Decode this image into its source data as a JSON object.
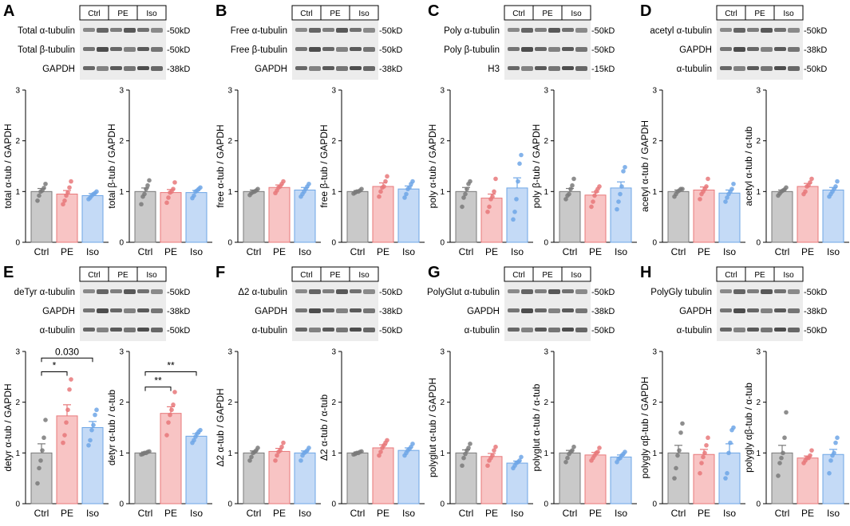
{
  "figure": {
    "colors": {
      "ctrl_fill": "#c9c9c9",
      "ctrl_edge": "#7a7a7a",
      "pe_fill": "#f8c4c4",
      "pe_edge": "#e8787a",
      "iso_fill": "#c4daf6",
      "iso_edge": "#6ea6e6"
    },
    "groups": [
      "Ctrl",
      "PE",
      "Iso"
    ],
    "axis_ticks": [
      "0",
      "1",
      "2",
      "3"
    ],
    "panels": [
      {
        "letter": "A",
        "blot": {
          "rows": [
            {
              "label": "Total α-tubulin",
              "kd": "-50kD"
            },
            {
              "label": "Total β-tubulin",
              "kd": "-50kD"
            },
            {
              "label": "GAPDH",
              "kd": "-38kD"
            }
          ]
        },
        "charts": [
          {
            "ylabel": "total α-tub / GAPDH",
            "means": [
              1.0,
              0.95,
              0.92
            ],
            "sems": [
              0.06,
              0.07,
              0.04
            ],
            "points": [
              [
                0.82,
                0.92,
                1.0,
                1.02,
                1.07,
                1.15
              ],
              [
                0.75,
                0.82,
                0.92,
                0.98,
                1.08,
                1.2
              ],
              [
                0.85,
                0.88,
                0.92,
                0.95,
                0.97,
                1.0
              ]
            ],
            "annotations": []
          },
          {
            "ylabel": "total β-tub / GAPDH",
            "means": [
              1.0,
              0.98,
              0.98
            ],
            "sems": [
              0.07,
              0.06,
              0.04
            ],
            "points": [
              [
                0.75,
                0.9,
                0.95,
                1.05,
                1.12,
                1.22
              ],
              [
                0.78,
                0.88,
                0.98,
                1.0,
                1.05,
                1.18
              ],
              [
                0.87,
                0.92,
                1.0,
                1.02,
                1.05,
                1.08
              ]
            ],
            "annotations": []
          }
        ]
      },
      {
        "letter": "B",
        "blot": {
          "rows": [
            {
              "label": "Free α-tubulin",
              "kd": "-50kD"
            },
            {
              "label": "Free β-tubulin",
              "kd": "-50kD"
            },
            {
              "label": "GAPDH",
              "kd": "-38kD"
            }
          ]
        },
        "charts": [
          {
            "ylabel": "free α-tub / GAPDH",
            "means": [
              1.0,
              1.08,
              1.03
            ],
            "sems": [
              0.03,
              0.05,
              0.05
            ],
            "points": [
              [
                0.93,
                0.97,
                0.99,
                1.0,
                1.02,
                1.05
              ],
              [
                0.97,
                1.02,
                1.08,
                1.1,
                1.15,
                1.2
              ],
              [
                0.9,
                0.95,
                1.0,
                1.05,
                1.1,
                1.15
              ]
            ],
            "annotations": []
          },
          {
            "ylabel": "free β-tub / GAPDH",
            "means": [
              1.0,
              1.1,
              1.05
            ],
            "sems": [
              0.02,
              0.07,
              0.06
            ],
            "points": [
              [
                0.96,
                0.98,
                1.0,
                1.0,
                1.02,
                1.05
              ],
              [
                0.9,
                1.0,
                1.08,
                1.1,
                1.2,
                1.3
              ],
              [
                0.88,
                0.95,
                1.05,
                1.08,
                1.15,
                1.2
              ]
            ],
            "annotations": []
          }
        ]
      },
      {
        "letter": "C",
        "blot": {
          "rows": [
            {
              "label": "Poly α-tubulin",
              "kd": "-50kD"
            },
            {
              "label": "Poly β-tubulin",
              "kd": "-50kD"
            },
            {
              "label": "H3",
              "kd": "-15kD"
            }
          ]
        },
        "charts": [
          {
            "ylabel": "poly α-tub / GAPDH",
            "means": [
              1.0,
              0.87,
              1.07
            ],
            "sems": [
              0.08,
              0.08,
              0.2
            ],
            "points": [
              [
                0.7,
                0.88,
                0.95,
                1.05,
                1.15,
                1.2
              ],
              [
                0.6,
                0.7,
                0.85,
                0.9,
                1.0,
                1.25
              ],
              [
                0.45,
                0.6,
                0.85,
                1.2,
                1.55,
                1.72
              ]
            ],
            "annotations": []
          },
          {
            "ylabel": "poly β-tub / GAPDH",
            "means": [
              1.0,
              0.93,
              1.07
            ],
            "sems": [
              0.06,
              0.06,
              0.12
            ],
            "points": [
              [
                0.85,
                0.92,
                0.95,
                1.05,
                1.12,
                1.25
              ],
              [
                0.7,
                0.8,
                0.92,
                1.0,
                1.05,
                1.1
              ],
              [
                0.65,
                0.8,
                0.95,
                1.1,
                1.4,
                1.48
              ]
            ],
            "annotations": []
          }
        ]
      },
      {
        "letter": "D",
        "blot": {
          "rows": [
            {
              "label": "acetyl α-tubulin",
              "kd": "-50kD"
            },
            {
              "label": "GAPDH",
              "kd": "-38kD"
            },
            {
              "label": "α-tubulin",
              "kd": "-50kD"
            }
          ]
        },
        "charts": [
          {
            "ylabel": "acetyl α-tub / GAPDH",
            "means": [
              1.0,
              1.03,
              0.97
            ],
            "sems": [
              0.03,
              0.06,
              0.06
            ],
            "points": [
              [
                0.9,
                0.95,
                1.0,
                1.02,
                1.05,
                1.05
              ],
              [
                0.85,
                0.95,
                1.0,
                1.05,
                1.1,
                1.25
              ],
              [
                0.8,
                0.88,
                0.95,
                1.0,
                1.05,
                1.15
              ]
            ],
            "annotations": []
          },
          {
            "ylabel": "acetyl α-tub / α-tub",
            "means": [
              1.0,
              1.1,
              1.03
            ],
            "sems": [
              0.03,
              0.06,
              0.05
            ],
            "points": [
              [
                0.92,
                0.96,
                1.0,
                1.02,
                1.04,
                1.08
              ],
              [
                0.95,
                1.0,
                1.1,
                1.12,
                1.18,
                1.25
              ],
              [
                0.9,
                0.95,
                1.0,
                1.05,
                1.1,
                1.2
              ]
            ],
            "annotations": []
          }
        ]
      },
      {
        "letter": "E",
        "blot": {
          "rows": [
            {
              "label": "deTyr α-tubulin",
              "kd": "-50kD"
            },
            {
              "label": "GAPDH",
              "kd": "-38kD"
            },
            {
              "label": "α-tubulin",
              "kd": "-50kD"
            }
          ]
        },
        "charts": [
          {
            "ylabel": "detyr α-tub / GAPDH",
            "means": [
              1.0,
              1.73,
              1.5
            ],
            "sems": [
              0.18,
              0.22,
              0.12
            ],
            "points": [
              [
                0.4,
                0.7,
                0.85,
                1.05,
                1.3,
                1.65
              ],
              [
                1.2,
                1.35,
                1.6,
                1.85,
                2.25,
                2.45
              ],
              [
                1.15,
                1.25,
                1.45,
                1.55,
                1.75,
                1.85
              ]
            ],
            "annotations": [
              {
                "text": "*",
                "from": 0,
                "to": 1,
                "y": 2.6
              },
              {
                "text": "0.030",
                "from": 0,
                "to": 2,
                "y": 2.87
              }
            ]
          },
          {
            "ylabel": "detyr α-tub / α-tub",
            "means": [
              1.0,
              1.78,
              1.33
            ],
            "sems": [
              0.02,
              0.13,
              0.05
            ],
            "points": [
              [
                0.97,
                0.98,
                1.0,
                1.0,
                1.02,
                1.03
              ],
              [
                1.35,
                1.6,
                1.75,
                1.85,
                1.95,
                2.2
              ],
              [
                1.2,
                1.25,
                1.32,
                1.38,
                1.42,
                1.45
              ]
            ],
            "annotations": [
              {
                "text": "**",
                "from": 0,
                "to": 1,
                "y": 2.3
              },
              {
                "text": "**",
                "from": 0,
                "to": 2,
                "y": 2.6
              }
            ]
          }
        ]
      },
      {
        "letter": "F",
        "blot": {
          "rows": [
            {
              "label": "Δ2 α-tubulin",
              "kd": "-50kD"
            },
            {
              "label": "GAPDH",
              "kd": "-38kD"
            },
            {
              "label": "α-tubulin",
              "kd": "-50kD"
            }
          ]
        },
        "charts": [
          {
            "ylabel": "Δ2 α-tub / GAPDH",
            "means": [
              1.0,
              1.03,
              1.0
            ],
            "sems": [
              0.04,
              0.06,
              0.04
            ],
            "points": [
              [
                0.85,
                0.92,
                1.0,
                1.02,
                1.05,
                1.1
              ],
              [
                0.85,
                0.95,
                1.02,
                1.05,
                1.12,
                1.2
              ],
              [
                0.85,
                0.95,
                1.0,
                1.02,
                1.05,
                1.1
              ]
            ],
            "annotations": []
          },
          {
            "ylabel": "Δ2 α-tub / α-tub",
            "means": [
              1.0,
              1.1,
              1.05
            ],
            "sems": [
              0.02,
              0.06,
              0.05
            ],
            "points": [
              [
                0.97,
                0.98,
                1.0,
                1.0,
                1.02,
                1.03
              ],
              [
                0.95,
                1.02,
                1.1,
                1.15,
                1.2,
                1.25
              ],
              [
                0.95,
                1.0,
                1.05,
                1.08,
                1.12,
                1.18
              ]
            ],
            "annotations": []
          }
        ]
      },
      {
        "letter": "G",
        "blot": {
          "rows": [
            {
              "label": "PolyGlut α-tubulin",
              "kd": "-50kD"
            },
            {
              "label": "GAPDH",
              "kd": "-38kD"
            },
            {
              "label": "α-tubulin",
              "kd": "-50kD"
            }
          ]
        },
        "charts": [
          {
            "ylabel": "polyglut α-tub / GAPDH",
            "means": [
              1.0,
              0.93,
              0.8
            ],
            "sems": [
              0.06,
              0.06,
              0.04
            ],
            "points": [
              [
                0.75,
                0.9,
                0.98,
                1.05,
                1.1,
                1.18
              ],
              [
                0.75,
                0.85,
                0.9,
                0.95,
                1.05,
                1.12
              ],
              [
                0.7,
                0.75,
                0.8,
                0.82,
                0.85,
                0.92
              ]
            ],
            "annotations": []
          },
          {
            "ylabel": "polyglut α-tub / α-tub",
            "means": [
              1.0,
              0.96,
              0.92
            ],
            "sems": [
              0.05,
              0.05,
              0.04
            ],
            "points": [
              [
                0.82,
                0.9,
                0.98,
                1.02,
                1.05,
                1.12
              ],
              [
                0.85,
                0.9,
                0.95,
                1.0,
                1.02,
                1.1
              ],
              [
                0.82,
                0.88,
                0.9,
                0.95,
                0.98,
                1.02
              ]
            ],
            "annotations": []
          }
        ]
      },
      {
        "letter": "H",
        "blot": {
          "rows": [
            {
              "label": "PolyGly tubulin",
              "kd": "-50kD"
            },
            {
              "label": "GAPDH",
              "kd": "-38kD"
            },
            {
              "label": "α-tubulin",
              "kd": "-50kD"
            }
          ]
        },
        "charts": [
          {
            "ylabel": "polygly αβ-tub / GAPDH",
            "means": [
              1.0,
              0.97,
              1.0
            ],
            "sems": [
              0.15,
              0.1,
              0.18
            ],
            "points": [
              [
                0.5,
                0.7,
                0.95,
                1.05,
                1.4,
                1.58
              ],
              [
                0.6,
                0.8,
                0.92,
                1.0,
                1.15,
                1.3
              ],
              [
                0.5,
                0.6,
                1.0,
                1.2,
                1.45,
                1.5
              ]
            ],
            "annotations": []
          },
          {
            "ylabel": "polygly αβ-tub / α-tub",
            "means": [
              1.0,
              0.9,
              0.97
            ],
            "sems": [
              0.15,
              0.04,
              0.1
            ],
            "points": [
              [
                0.55,
                0.8,
                0.9,
                1.0,
                1.3,
                1.8
              ],
              [
                0.8,
                0.85,
                0.9,
                0.9,
                0.95,
                1.05
              ],
              [
                0.6,
                0.85,
                0.95,
                1.0,
                1.2,
                1.3
              ]
            ],
            "annotations": []
          }
        ]
      }
    ]
  }
}
